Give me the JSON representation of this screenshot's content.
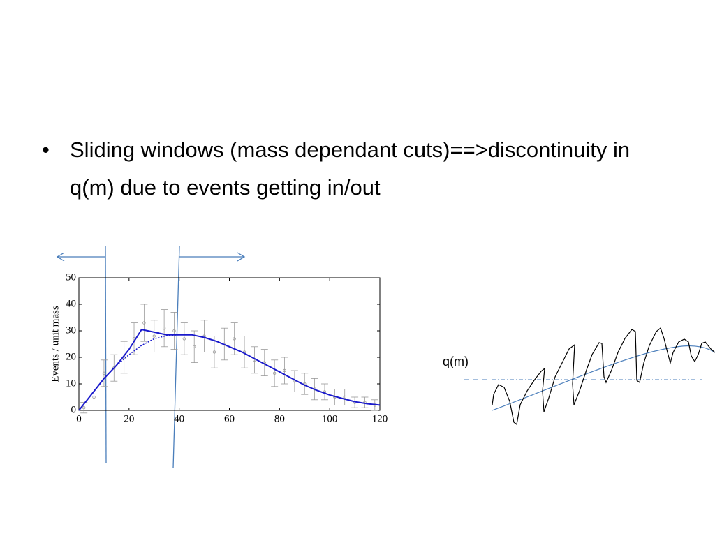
{
  "bullet": "Sliding windows (mass dependant cuts)==>discontinuity in q(m) due to events getting in/out",
  "q_label": "q(m)",
  "chart_data": {
    "type": "line",
    "ylabel": "Events / unit mass",
    "xlim": [
      0,
      120
    ],
    "ylim": [
      0,
      50
    ],
    "xticks": [
      0,
      20,
      40,
      60,
      80,
      100,
      120
    ],
    "yticks": [
      0,
      10,
      20,
      30,
      40,
      50
    ],
    "x": [
      0,
      5,
      10,
      15,
      20,
      25,
      30,
      35,
      40,
      45,
      50,
      55,
      60,
      65,
      70,
      75,
      80,
      85,
      90,
      95,
      100,
      105,
      110,
      115,
      120
    ],
    "series": [
      {
        "color": "#1a1acc",
        "dashed": false,
        "values": [
          0,
          6,
          12,
          17,
          23,
          30.5,
          29.5,
          28.5,
          28.5,
          28.5,
          27.5,
          26,
          24,
          22,
          19.5,
          17,
          14.5,
          12,
          9.5,
          7.5,
          5.8,
          4.5,
          3.3,
          2.5,
          2
        ]
      },
      {
        "color": "#1a1acc",
        "dashed": true,
        "values": [
          null,
          null,
          null,
          17,
          21,
          24.5,
          27,
          28.2,
          28.5,
          null,
          null,
          null,
          null,
          null,
          null,
          null,
          null,
          null,
          null,
          null,
          null,
          null,
          null,
          null,
          null
        ]
      }
    ],
    "points": {
      "color": "#9a9a9a",
      "x": [
        2,
        6,
        10,
        14,
        18,
        22,
        26,
        30,
        34,
        38,
        42,
        46,
        50,
        54,
        58,
        62,
        66,
        70,
        74,
        78,
        82,
        86,
        90,
        94,
        98,
        102,
        106,
        110,
        114,
        118
      ],
      "values": [
        1,
        5,
        14,
        16,
        20,
        27,
        33,
        28,
        31,
        30,
        27,
        24,
        28,
        22,
        25,
        27,
        22,
        19,
        18,
        14,
        15,
        11,
        10,
        8,
        7,
        5,
        5,
        3,
        3,
        2
      ],
      "errors": [
        2,
        3,
        5,
        5,
        6,
        6,
        7,
        6,
        7,
        7,
        6,
        6,
        6,
        6,
        6,
        6,
        6,
        5,
        5,
        5,
        5,
        4,
        4,
        4,
        3,
        3,
        3,
        2,
        2,
        2
      ]
    }
  }
}
